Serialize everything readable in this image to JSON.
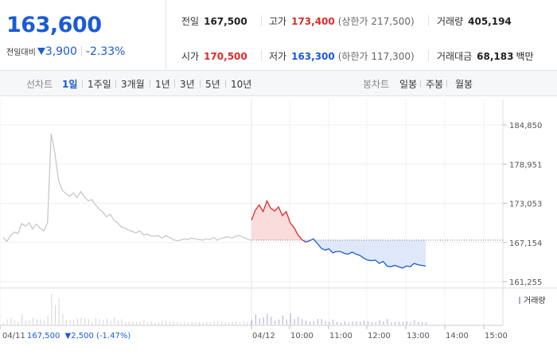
{
  "price": {
    "current": "163,600",
    "change_label": "전일대비",
    "change_amount": "3,900",
    "change_percent": "-2.33%",
    "direction": "down"
  },
  "stats": {
    "prev_close": {
      "label": "전일",
      "value": "167,500"
    },
    "high": {
      "label": "고가",
      "value": "173,400",
      "sub": "(상한가 217,500)"
    },
    "volume": {
      "label": "거래량",
      "value": "405,194"
    },
    "open": {
      "label": "시가",
      "value": "170,500"
    },
    "low": {
      "label": "저가",
      "value": "163,300",
      "sub": "(하한가 117,300)"
    },
    "trade_value": {
      "label": "거래대금",
      "value": "68,183",
      "unit": "백만"
    }
  },
  "tabs": {
    "line_label": "선차트",
    "line_tabs": [
      "1일",
      "1주일",
      "3개월",
      "1년",
      "3년",
      "5년",
      "10년"
    ],
    "active": "1일",
    "candle_label": "봉차트",
    "candle_tabs": [
      "일봉",
      "주봉",
      "월봉"
    ]
  },
  "chart": {
    "volume_legend": "거래량",
    "prev_day_info": {
      "date": "04/11",
      "close": "167,500",
      "change": "▼2,500 (-1.47%)"
    },
    "colors": {
      "up": "#e02a2a",
      "down": "#1a5bd6",
      "prev": "#c4c4c4",
      "up_fill": "#fbdcdc",
      "down_fill": "#dfe8f8"
    }
  },
  "chart_data": {
    "type": "line",
    "y_ticks": [
      "184,850",
      "178,951",
      "173,053",
      "167,154",
      "161,255"
    ],
    "x_ticks": [
      "04/11",
      "04/12",
      "10:00",
      "11:00",
      "12:00",
      "13:00",
      "14:00",
      "15:00"
    ],
    "ylim": [
      161255,
      184850
    ],
    "reference_price": 167500,
    "series": [
      {
        "name": "04/11",
        "values": [
          167900,
          167300,
          168200,
          168700,
          168500,
          170000,
          169600,
          170100,
          169200,
          169900,
          169300,
          168900,
          170100,
          183500,
          180600,
          176500,
          175000,
          174500,
          174100,
          174600,
          173900,
          174800,
          174000,
          173400,
          173600,
          172800,
          172200,
          171700,
          171000,
          171400,
          170500,
          170100,
          169500,
          169300,
          169000,
          168800,
          168600,
          168900,
          168300,
          168400,
          168100,
          168100,
          168200,
          167800,
          168200,
          167900,
          167600,
          167400,
          167500,
          167700,
          167600,
          167800,
          167700,
          167600,
          167500,
          167700,
          167600,
          167900,
          167500,
          167800,
          167900,
          168000,
          167800,
          168100,
          168200,
          167900,
          167700,
          167500
        ]
      },
      {
        "name": "04/12",
        "values": [
          170500,
          172000,
          172800,
          171800,
          173400,
          172300,
          171900,
          172500,
          171200,
          171800,
          170100,
          169400,
          168300,
          167600,
          167200,
          167400,
          167700,
          167000,
          166300,
          166000,
          166200,
          165600,
          165800,
          165800,
          165500,
          165400,
          165700,
          165400,
          165200,
          164800,
          164500,
          164400,
          164500,
          164000,
          164300,
          163600,
          163500,
          163700,
          163500,
          163300,
          163600,
          163500,
          164000,
          163800,
          163700,
          163600
        ]
      }
    ]
  }
}
